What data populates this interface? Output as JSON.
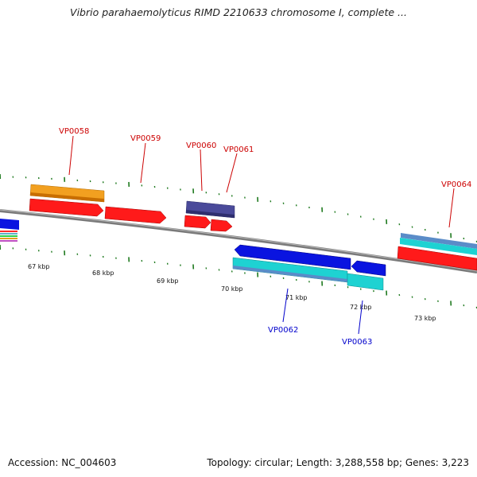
{
  "title": "Vibrio parahaemolyticus RIMD 2210633 chromosome I, complete ...",
  "footer": {
    "accession": "Accession: NC_004603",
    "summary": "Topology: circular; Length: 3,288,558 bp; Genes: 3,223"
  },
  "colors": {
    "backbone": "#8a8a8a",
    "tick": "#1f7a1f",
    "label_forward": "#cc0000",
    "label_reverse": "#0000cc"
  },
  "ticks": [
    "67 kbp",
    "68 kbp",
    "69 kbp",
    "70 kbp",
    "71 kbp",
    "72 kbp",
    "73 kbp"
  ],
  "genes": [
    {
      "id": "VP0058",
      "strand": "forward"
    },
    {
      "id": "VP0059",
      "strand": "forward"
    },
    {
      "id": "VP0060",
      "strand": "forward"
    },
    {
      "id": "VP0061",
      "strand": "forward"
    },
    {
      "id": "VP0062",
      "strand": "reverse"
    },
    {
      "id": "VP0063",
      "strand": "reverse"
    },
    {
      "id": "VP0064",
      "strand": "forward"
    }
  ]
}
